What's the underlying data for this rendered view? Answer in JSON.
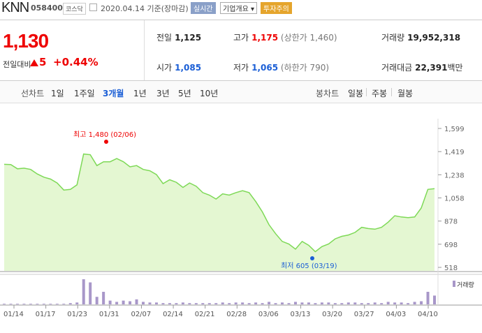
{
  "header": {
    "name": "KNN",
    "code": "058400",
    "market": "코스닥",
    "date": "2020.04.14 기준(장마감)",
    "realtime": "실시간",
    "corp_info": "기업개요 ▾",
    "warning": "투자주의"
  },
  "summary": {
    "price": "1,130",
    "change_label": "전일대비",
    "change": "5",
    "change_pct": "+0.44%",
    "prev_label": "전일",
    "prev": "1,125",
    "high_label": "고가",
    "high": "1,175",
    "high_limit": "(상한가 1,460)",
    "volume_label": "거래량",
    "volume": "19,952,318",
    "open_label": "시가",
    "open": "1,085",
    "low_label": "저가",
    "low": "1,065",
    "low_limit": "(하한가 790)",
    "amount_label": "거래대금",
    "amount": "22,391",
    "amount_unit": "백만"
  },
  "periods": {
    "line_label": "선차트",
    "items": [
      "1일",
      "1주일",
      "3개월",
      "1년",
      "3년",
      "5년",
      "10년"
    ],
    "selected": "3개월",
    "candle_label": "봉차트",
    "candle_items": [
      "일봉",
      "주봉",
      "월봉"
    ]
  },
  "chart_data": {
    "type": "area",
    "y_ticks": [
      "1,599",
      "1,419",
      "1,238",
      "1,058",
      "878",
      "698",
      "518"
    ],
    "ylim": [
      518,
      1599
    ],
    "x_ticks": [
      "01/14",
      "01/17",
      "01/23",
      "01/31",
      "02/07",
      "02/14",
      "02/21",
      "02/28",
      "03/06",
      "03/13",
      "03/20",
      "03/27",
      "04/03",
      "04/10"
    ],
    "prices": [
      1320,
      1318,
      1285,
      1290,
      1280,
      1245,
      1220,
      1205,
      1175,
      1120,
      1125,
      1160,
      1400,
      1395,
      1310,
      1340,
      1340,
      1365,
      1340,
      1300,
      1310,
      1280,
      1270,
      1240,
      1170,
      1200,
      1180,
      1140,
      1175,
      1150,
      1100,
      1080,
      1050,
      1090,
      1080,
      1100,
      1115,
      1100,
      1030,
      950,
      850,
      780,
      720,
      700,
      660,
      720,
      690,
      640,
      680,
      700,
      740,
      760,
      770,
      790,
      830,
      820,
      815,
      830,
      870,
      920,
      910,
      905,
      910,
      980,
      1125,
      1130
    ],
    "volumes": [
      1,
      1,
      1,
      1,
      1,
      1,
      1,
      1,
      1,
      1,
      2,
      3,
      40,
      35,
      12,
      20,
      6,
      4,
      6,
      5,
      8,
      4,
      3,
      3,
      2,
      2,
      2,
      3,
      2,
      2,
      2,
      2,
      2,
      3,
      2,
      3,
      3,
      2,
      3,
      2,
      4,
      2,
      3,
      2,
      4,
      3,
      3,
      2,
      3,
      3,
      2,
      2,
      3,
      3,
      2,
      2,
      3,
      2,
      4,
      3,
      3,
      2,
      4,
      5,
      20,
      14
    ],
    "max_label": "최고 1,480 (02/06)",
    "min_label": "최저 605 (03/19)",
    "volume_legend": "거래량",
    "line_color": "#7ed957",
    "fill_color": "#e4f7d2",
    "volume_color": "#a897c9"
  }
}
